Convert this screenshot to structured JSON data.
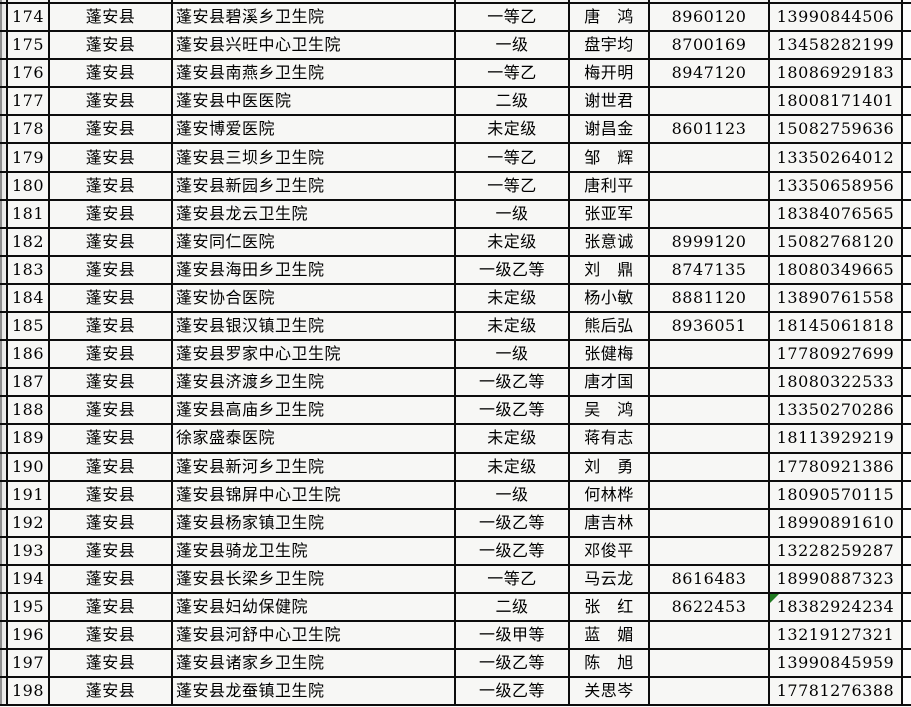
{
  "table": {
    "county_repeated_value": "蓬安县",
    "visible_row_range": {
      "first": "174",
      "last": "198"
    },
    "rows": [
      {
        "num": "174",
        "county": "蓬安县",
        "hospital": "蓬安县碧溪乡卫生院",
        "grade": "一等乙",
        "person": "唐　鸿",
        "phone": "8960120",
        "mobile": "13990844506"
      },
      {
        "num": "175",
        "county": "蓬安县",
        "hospital": "蓬安县兴旺中心卫生院",
        "grade": "一级",
        "person": "盘宇均",
        "phone": "8700169",
        "mobile": "13458282199"
      },
      {
        "num": "176",
        "county": "蓬安县",
        "hospital": "蓬安县南燕乡卫生院",
        "grade": "一等乙",
        "person": "梅开明",
        "phone": "8947120",
        "mobile": "18086929183"
      },
      {
        "num": "177",
        "county": "蓬安县",
        "hospital": "蓬安县中医医院",
        "grade": "二级",
        "person": "谢世君",
        "phone": "",
        "mobile": "18008171401"
      },
      {
        "num": "178",
        "county": "蓬安县",
        "hospital": "蓬安博爱医院",
        "grade": "未定级",
        "person": "谢昌金",
        "phone": "8601123",
        "mobile": "15082759636"
      },
      {
        "num": "179",
        "county": "蓬安县",
        "hospital": "蓬安县三坝乡卫生院",
        "grade": "一等乙",
        "person": "邹　辉",
        "phone": "",
        "mobile": "13350264012"
      },
      {
        "num": "180",
        "county": "蓬安县",
        "hospital": "蓬安县新园乡卫生院",
        "grade": "一等乙",
        "person": "唐利平",
        "phone": "",
        "mobile": "13350658956"
      },
      {
        "num": "181",
        "county": "蓬安县",
        "hospital": "蓬安县龙云卫生院",
        "grade": "一级",
        "person": "张亚军",
        "phone": "",
        "mobile": "18384076565"
      },
      {
        "num": "182",
        "county": "蓬安县",
        "hospital": "蓬安同仁医院",
        "grade": "未定级",
        "person": "张意诚",
        "phone": "8999120",
        "mobile": "15082768120"
      },
      {
        "num": "183",
        "county": "蓬安县",
        "hospital": "蓬安县海田乡卫生院",
        "grade": "一级乙等",
        "person": "刘　鼎",
        "phone": "8747135",
        "mobile": "18080349665"
      },
      {
        "num": "184",
        "county": "蓬安县",
        "hospital": "蓬安协合医院",
        "grade": "未定级",
        "person": "杨小敏",
        "phone": "8881120",
        "mobile": "13890761558"
      },
      {
        "num": "185",
        "county": "蓬安县",
        "hospital": "蓬安县银汉镇卫生院",
        "grade": "未定级",
        "person": "熊后弘",
        "phone": "8936051",
        "mobile": "18145061818"
      },
      {
        "num": "186",
        "county": "蓬安县",
        "hospital": "蓬安县罗家中心卫生院",
        "grade": "一级",
        "person": "张健梅",
        "phone": "",
        "mobile": "17780927699"
      },
      {
        "num": "187",
        "county": "蓬安县",
        "hospital": "蓬安县济渡乡卫生院",
        "grade": "一级乙等",
        "person": "唐才国",
        "phone": "",
        "mobile": "18080322533"
      },
      {
        "num": "188",
        "county": "蓬安县",
        "hospital": "蓬安县高庙乡卫生院",
        "grade": "一级乙等",
        "person": "吴　鸿",
        "phone": "",
        "mobile": "13350270286"
      },
      {
        "num": "189",
        "county": "蓬安县",
        "hospital": "徐家盛泰医院",
        "grade": "未定级",
        "person": "蒋有志",
        "phone": "",
        "mobile": "18113929219"
      },
      {
        "num": "190",
        "county": "蓬安县",
        "hospital": "蓬安县新河乡卫生院",
        "grade": "未定级",
        "person": "刘　勇",
        "phone": "",
        "mobile": "17780921386"
      },
      {
        "num": "191",
        "county": "蓬安县",
        "hospital": "蓬安县锦屏中心卫生院",
        "grade": "一级",
        "person": "何林桦",
        "phone": "",
        "mobile": "18090570115"
      },
      {
        "num": "192",
        "county": "蓬安县",
        "hospital": "蓬安县杨家镇卫生院",
        "grade": "一级乙等",
        "person": "唐吉林",
        "phone": "",
        "mobile": "18990891610"
      },
      {
        "num": "193",
        "county": "蓬安县",
        "hospital": "蓬安县骑龙卫生院",
        "grade": "一级乙等",
        "person": "邓俊平",
        "phone": "",
        "mobile": "13228259287"
      },
      {
        "num": "194",
        "county": "蓬安县",
        "hospital": "蓬安县长梁乡卫生院",
        "grade": "一等乙",
        "person": "马云龙",
        "phone": "8616483",
        "mobile": "18990887323"
      },
      {
        "num": "195",
        "county": "蓬安县",
        "hospital": "蓬安县妇幼保健院",
        "grade": "二级",
        "person": "张　红",
        "phone": "8622453",
        "mobile": "18382924234",
        "mobile_error_indicator": true
      },
      {
        "num": "196",
        "county": "蓬安县",
        "hospital": "蓬安县河舒中心卫生院",
        "grade": "一级甲等",
        "person": "蓝　媚",
        "phone": "",
        "mobile": "13219127321"
      },
      {
        "num": "197",
        "county": "蓬安县",
        "hospital": "蓬安县诸家乡卫生院",
        "grade": "一级乙等",
        "person": "陈　旭",
        "phone": "",
        "mobile": "13990845959"
      },
      {
        "num": "198",
        "county": "蓬安县",
        "hospital": "蓬安县龙蚕镇卫生院",
        "grade": "一级乙等",
        "person": "关思岑",
        "phone": "",
        "mobile": "17781276388"
      }
    ]
  },
  "error_indicator": {
    "description": "green number-stored-as-text triangle",
    "color": "#217a21",
    "row_num": "195",
    "column": "mobile"
  },
  "colors": {
    "grid_line": "#0d0d0d",
    "cell_background": "#f7f7f5",
    "left_edge_shadow": "#8f8f8f"
  }
}
